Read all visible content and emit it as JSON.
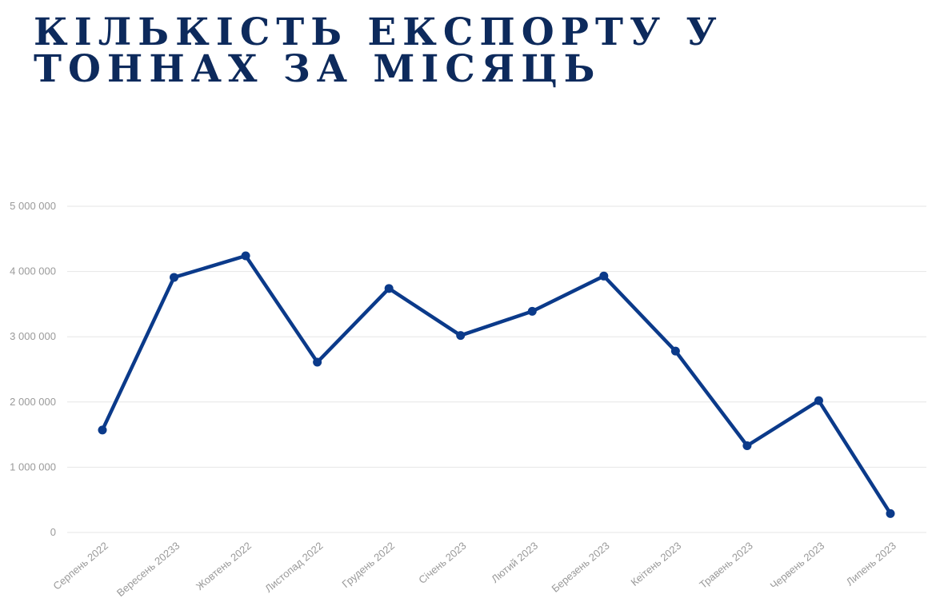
{
  "chart_data": {
    "type": "line",
    "title": "КІЛЬКІСТЬ ЕКСПОРТУ У ТОННАХ ЗА МІСЯЦЬ",
    "categories": [
      "Серпень 2022",
      "Вересень 20233",
      "Жовтень 2022",
      "Листопад 2022",
      "Грудень 2022",
      "Січень 2023",
      "Лютий 2023",
      "Березень 2023",
      "Кеітень 2023",
      "Травень 2023",
      "Червень 2023",
      "Липень 2023"
    ],
    "series": [
      {
        "values": [
          1570000,
          3910000,
          4240000,
          2610000,
          3740000,
          3020000,
          3390000,
          3930000,
          2780000,
          1330000,
          2020000,
          290000
        ],
        "color": "#0b3a8a"
      }
    ],
    "y_ticks": [
      {
        "value": 0,
        "label": "0"
      },
      {
        "value": 1000000,
        "label": "1 000 000"
      },
      {
        "value": 2000000,
        "label": "2 000 000"
      },
      {
        "value": 3000000,
        "label": "3 000 000"
      },
      {
        "value": 4000000,
        "label": "4 000 000"
      },
      {
        "value": 5000000,
        "label": "5 000 000"
      }
    ],
    "ylim": [
      0,
      5000000
    ],
    "grid": true,
    "legend": "none"
  }
}
